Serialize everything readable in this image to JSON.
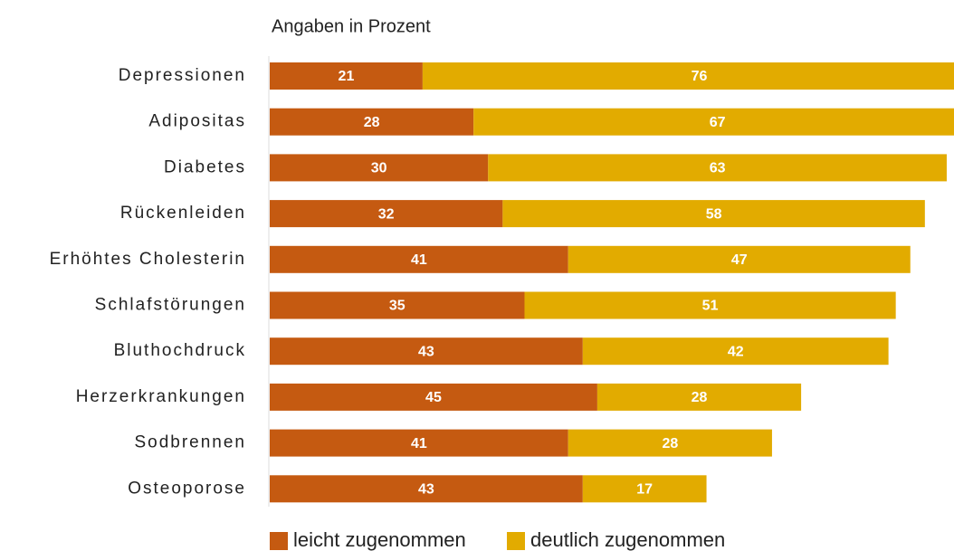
{
  "chart_data": {
    "type": "stacked-bar-horizontal",
    "subtitle": "Angaben in Prozent",
    "categories": [
      "Depressionen",
      "Adipositas",
      "Diabetes",
      "Rückenleiden",
      "Erhöhtes Cholesterin",
      "Schlafstörungen",
      "Bluthochdruck",
      "Herzerkrankungen",
      "Sodbrennen",
      "Osteoporose"
    ],
    "series": [
      {
        "name": "leicht zugenommen",
        "color": "#c55a11",
        "values": [
          21,
          28,
          30,
          32,
          41,
          35,
          43,
          45,
          41,
          43
        ]
      },
      {
        "name": "deutlich zugenommen",
        "color": "#e2ab00",
        "values": [
          76,
          67,
          63,
          58,
          47,
          51,
          42,
          28,
          28,
          17
        ]
      }
    ],
    "xlim": [
      0,
      94
    ],
    "legend": "bottom"
  }
}
